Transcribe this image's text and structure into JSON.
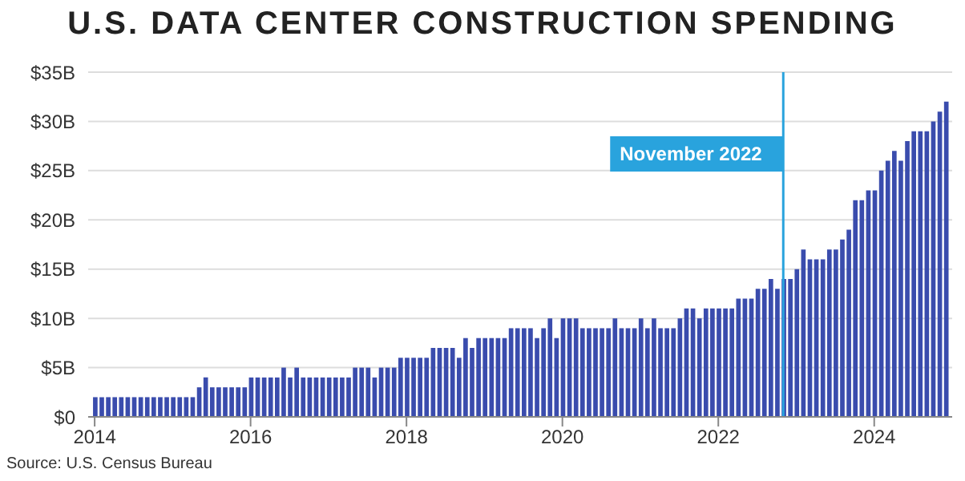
{
  "chart_data": {
    "type": "bar",
    "title": "U.S. DATA CENTER CONSTRUCTION SPENDING",
    "x": [
      "2014-01",
      "2014-02",
      "2014-03",
      "2014-04",
      "2014-05",
      "2014-06",
      "2014-07",
      "2014-08",
      "2014-09",
      "2014-10",
      "2014-11",
      "2014-12",
      "2015-01",
      "2015-02",
      "2015-03",
      "2015-04",
      "2015-05",
      "2015-06",
      "2015-07",
      "2015-08",
      "2015-09",
      "2015-10",
      "2015-11",
      "2015-12",
      "2016-01",
      "2016-02",
      "2016-03",
      "2016-04",
      "2016-05",
      "2016-06",
      "2016-07",
      "2016-08",
      "2016-09",
      "2016-10",
      "2016-11",
      "2016-12",
      "2017-01",
      "2017-02",
      "2017-03",
      "2017-04",
      "2017-05",
      "2017-06",
      "2017-07",
      "2017-08",
      "2017-09",
      "2017-10",
      "2017-11",
      "2017-12",
      "2018-01",
      "2018-02",
      "2018-03",
      "2018-04",
      "2018-05",
      "2018-06",
      "2018-07",
      "2018-08",
      "2018-09",
      "2018-10",
      "2018-11",
      "2018-12",
      "2019-01",
      "2019-02",
      "2019-03",
      "2019-04",
      "2019-05",
      "2019-06",
      "2019-07",
      "2019-08",
      "2019-09",
      "2019-10",
      "2019-11",
      "2019-12",
      "2020-01",
      "2020-02",
      "2020-03",
      "2020-04",
      "2020-05",
      "2020-06",
      "2020-07",
      "2020-08",
      "2020-09",
      "2020-10",
      "2020-11",
      "2020-12",
      "2021-01",
      "2021-02",
      "2021-03",
      "2021-04",
      "2021-05",
      "2021-06",
      "2021-07",
      "2021-08",
      "2021-09",
      "2021-10",
      "2021-11",
      "2021-12",
      "2022-01",
      "2022-02",
      "2022-03",
      "2022-04",
      "2022-05",
      "2022-06",
      "2022-07",
      "2022-08",
      "2022-09",
      "2022-10",
      "2022-11",
      "2022-12",
      "2023-01",
      "2023-02",
      "2023-03",
      "2023-04",
      "2023-05",
      "2023-06",
      "2023-07",
      "2023-08",
      "2023-09",
      "2023-10",
      "2023-11",
      "2023-12",
      "2024-01",
      "2024-02",
      "2024-03",
      "2024-04",
      "2024-05",
      "2024-06",
      "2024-07",
      "2024-08",
      "2024-09",
      "2024-10",
      "2024-11",
      "2024-12"
    ],
    "values": [
      2,
      2,
      2,
      2,
      2,
      2,
      2,
      2,
      2,
      2,
      2,
      2,
      2,
      2,
      2,
      2,
      3,
      4,
      3,
      3,
      3,
      3,
      3,
      3,
      4,
      4,
      4,
      4,
      4,
      5,
      4,
      5,
      4,
      4,
      4,
      4,
      4,
      4,
      4,
      4,
      5,
      5,
      5,
      4,
      5,
      5,
      5,
      6,
      6,
      6,
      6,
      6,
      7,
      7,
      7,
      7,
      6,
      8,
      7,
      8,
      8,
      8,
      8,
      8,
      9,
      9,
      9,
      9,
      8,
      9,
      10,
      8,
      10,
      10,
      10,
      9,
      9,
      9,
      9,
      9,
      10,
      9,
      9,
      9,
      10,
      9,
      10,
      9,
      9,
      9,
      10,
      11,
      11,
      10,
      11,
      11,
      11,
      11,
      11,
      12,
      12,
      12,
      13,
      13,
      14,
      13,
      14,
      14,
      15,
      17,
      16,
      16,
      16,
      17,
      17,
      18,
      19,
      22,
      22,
      23,
      23,
      25,
      26,
      27,
      26,
      28,
      29,
      29,
      29,
      30,
      31,
      32
    ],
    "color": "#3a4cad",
    "xlim": [
      "2013-12",
      "2025-01"
    ],
    "xticks": [
      "2014",
      "2016",
      "2018",
      "2020",
      "2022",
      "2024"
    ],
    "ylim": [
      0,
      35
    ],
    "yticks": [
      {
        "value": 0,
        "label": "$0"
      },
      {
        "value": 5,
        "label": "$5B"
      },
      {
        "value": 10,
        "label": "$10B"
      },
      {
        "value": 15,
        "label": "$15B"
      },
      {
        "value": 20,
        "label": "$20B"
      },
      {
        "value": 25,
        "label": "$25B"
      },
      {
        "value": 30,
        "label": "$30B"
      },
      {
        "value": 35,
        "label": "$35B"
      }
    ],
    "grid": "y",
    "ref_lines": [
      {
        "axis": "x",
        "value": "2022-11",
        "label": "November 2022",
        "color": "#29a3dd"
      }
    ],
    "annotations": [
      "Source: U.S. Census Bureau"
    ]
  }
}
